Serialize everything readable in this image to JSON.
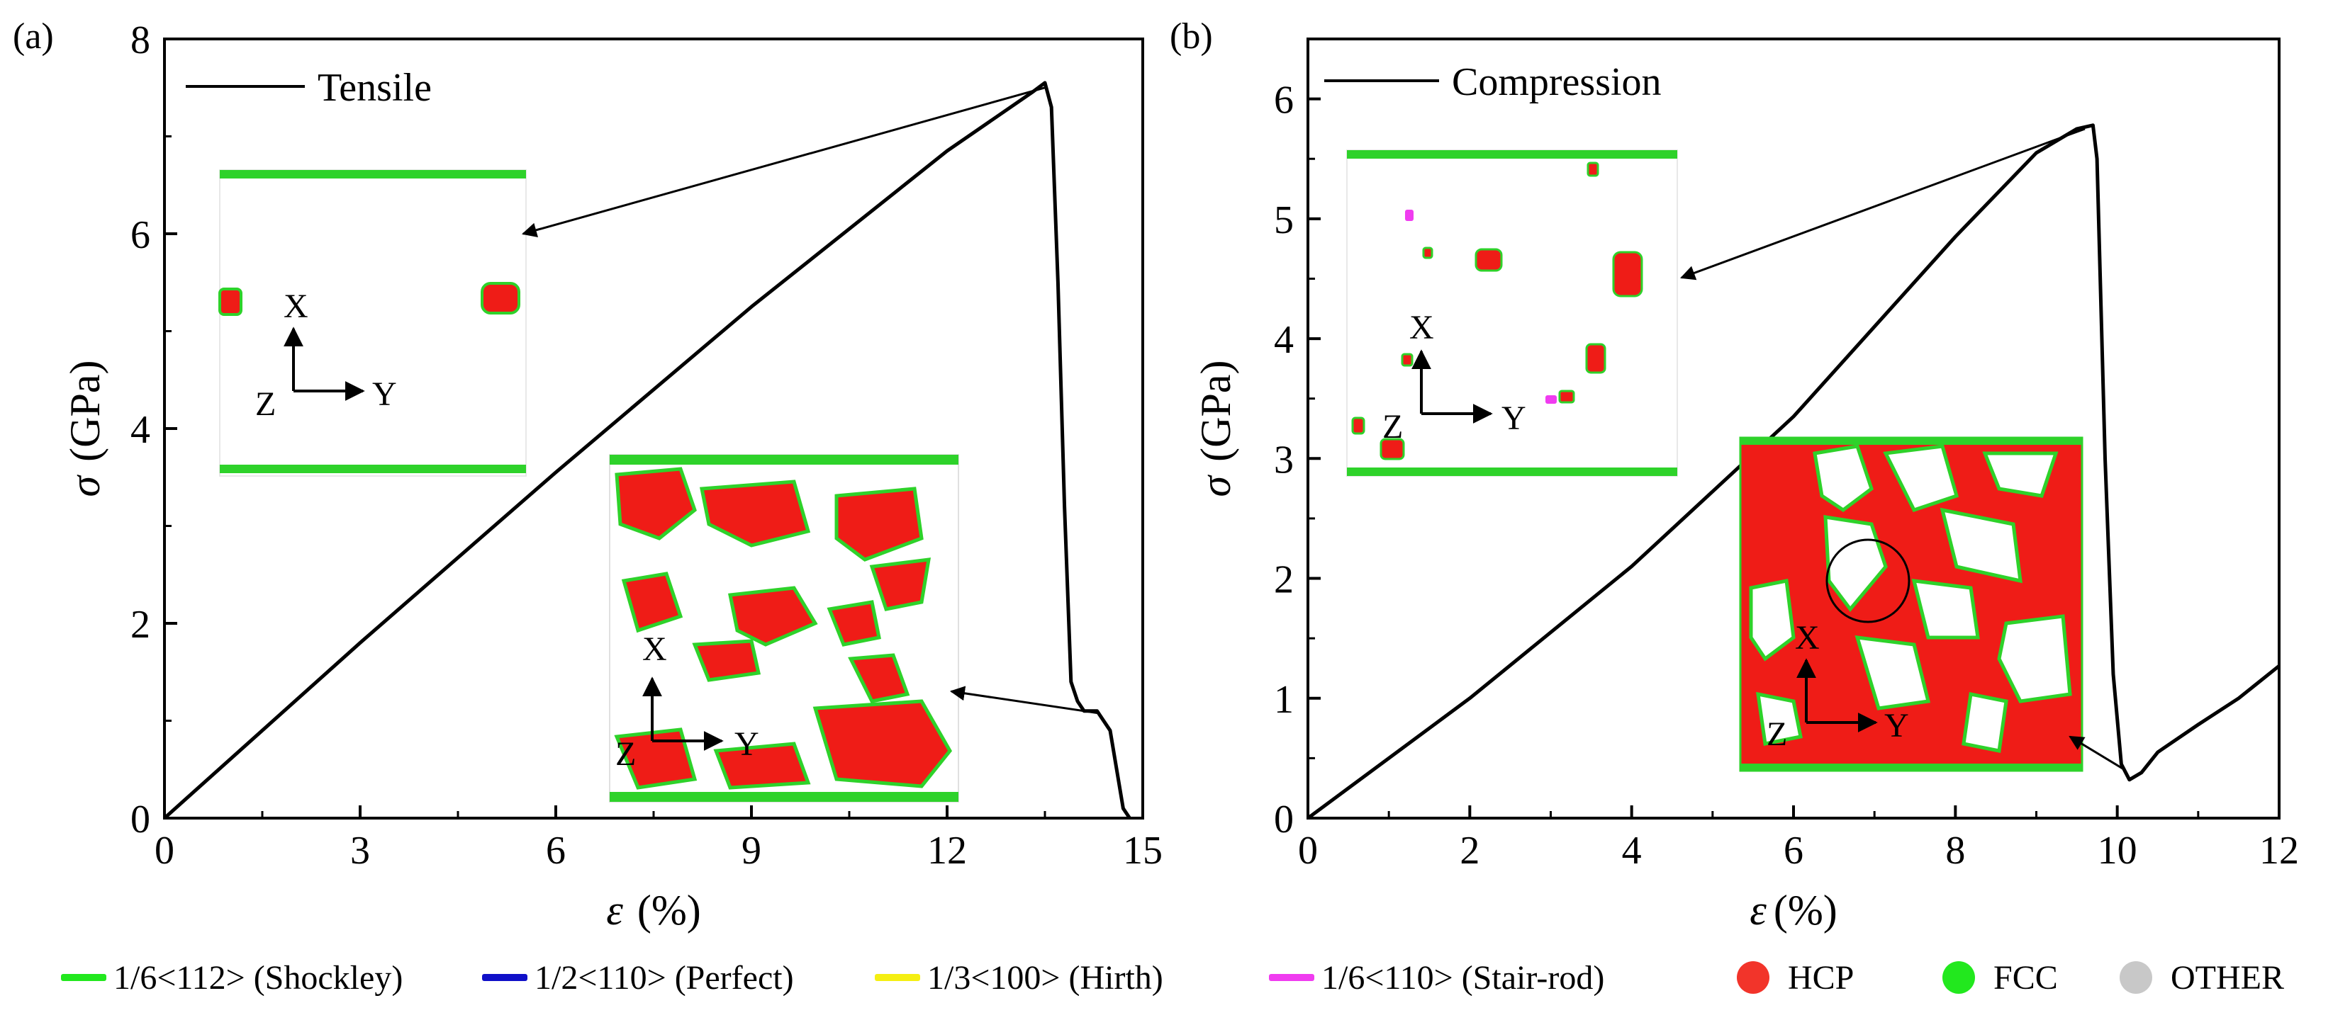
{
  "chart_data": [
    {
      "panel": "(a)",
      "type": "line",
      "xlabel_symbol": "ε",
      "xlabel_unit": "(%)",
      "ylabel_symbol": "σ",
      "ylabel_unit": "(GPa)",
      "xlim": [
        0,
        15
      ],
      "ylim": [
        0,
        8
      ],
      "xticks": [
        0,
        3,
        6,
        9,
        12,
        15
      ],
      "yticks": [
        0,
        2,
        4,
        6,
        8
      ],
      "series": [
        {
          "name": "Tensile",
          "color": "#000000",
          "x": [
            0,
            3,
            6,
            9,
            12,
            13.3,
            13.5,
            13.6,
            13.7,
            13.8,
            13.9,
            14.0,
            14.1,
            14.3,
            14.5,
            14.6,
            14.7,
            14.8
          ],
          "y": [
            0,
            1.8,
            3.55,
            5.25,
            6.85,
            7.45,
            7.55,
            7.3,
            5.5,
            3.2,
            1.4,
            1.2,
            1.1,
            1.1,
            0.9,
            0.5,
            0.1,
            0
          ]
        }
      ],
      "annotations": [
        {
          "label": "arrow to inset at peak",
          "x": 13.5,
          "y": 7.5
        },
        {
          "label": "arrow to inset at fracture",
          "x": 14.3,
          "y": 1.08
        }
      ],
      "insets": [
        {
          "axes": [
            "X",
            "Y",
            "Z"
          ]
        },
        {
          "axes": [
            "X",
            "Y",
            "Z"
          ]
        }
      ]
    },
    {
      "panel": "(b)",
      "type": "line",
      "xlabel_symbol": "ε",
      "xlabel_unit": "(%)",
      "ylabel_symbol": "σ",
      "ylabel_unit": "(GPa)",
      "xlim": [
        0,
        12
      ],
      "ylim": [
        0,
        6.5
      ],
      "xticks": [
        0,
        2,
        4,
        6,
        8,
        10,
        12
      ],
      "yticks": [
        0,
        1,
        2,
        3,
        4,
        5,
        6
      ],
      "series": [
        {
          "name": "Compression",
          "color": "#000000",
          "x": [
            0,
            2,
            4,
            6,
            8,
            9.0,
            9.5,
            9.7,
            9.75,
            9.85,
            9.95,
            10.05,
            10.15,
            10.3,
            10.5,
            11.0,
            11.5,
            12.0
          ],
          "y": [
            0,
            1.0,
            2.1,
            3.35,
            4.85,
            5.55,
            5.75,
            5.78,
            5.5,
            3.0,
            1.2,
            0.45,
            0.32,
            0.38,
            0.55,
            0.78,
            1.0,
            1.27
          ]
        }
      ],
      "annotations": [
        {
          "label": "arrow to inset at peak",
          "x": 9.6,
          "y": 5.75
        },
        {
          "label": "arrow to inset at fracture",
          "x": 10.1,
          "y": 0.4
        }
      ],
      "insets": [
        {
          "axes": [
            "X",
            "Y",
            "Z"
          ]
        },
        {
          "axes": [
            "X",
            "Y",
            "Z"
          ]
        }
      ]
    }
  ],
  "legend": {
    "items": [
      {
        "label": "1/6<112> (Shockley)",
        "kind": "line",
        "color": "#22e81e"
      },
      {
        "label": "1/2<110> (Perfect)",
        "kind": "line",
        "color": "#1010c8"
      },
      {
        "label": "1/3<100> (Hirth)",
        "kind": "line",
        "color": "#f5ef12"
      },
      {
        "label": "1/6<110> (Stair-rod)",
        "kind": "line",
        "color": "#f03cf0"
      },
      {
        "label": "HCP",
        "kind": "dot",
        "color": "#f2342a"
      },
      {
        "label": "FCC",
        "kind": "dot",
        "color": "#22e81e"
      },
      {
        "label": "OTHER",
        "kind": "dot",
        "color": "#c8c8c8"
      }
    ]
  },
  "colors": {
    "hcp": "#ef1c17",
    "fcc": "#2ed22a",
    "other": "#c8c8c8",
    "axis": "#000000"
  }
}
